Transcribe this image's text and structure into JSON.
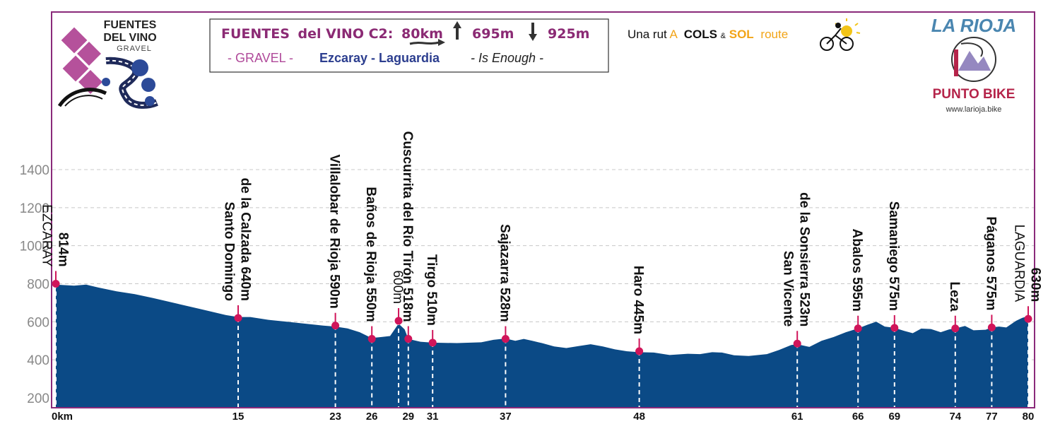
{
  "header": {
    "logo_left": {
      "line1": "FUENTES",
      "line2": "DEL VINO",
      "line3": "GRAVEL"
    },
    "title_box": {
      "route_name": "FUENTES",
      "route_name_rest": "del VINO C2:",
      "distance": "80km",
      "ascent": "695m",
      "descent": "925m",
      "gravel_label": "- GRAVEL -",
      "route_ends": "Ezcaray - Laguardia",
      "tagline": "- Is Enough -"
    },
    "cols_sol": {
      "prefix": "Una rut",
      "a_letter": "A",
      "cols": "COLS",
      "amp": "&",
      "sol": "SOL",
      "route": "route"
    },
    "brand": {
      "region": "LA RIOJA",
      "shop": "PUNTO BIKE",
      "website": "www.larioja.bike"
    }
  },
  "colors": {
    "frame": "#8a2a7a",
    "profile_fill": "#0b4a86",
    "marker": "#d0155a",
    "title_magenta": "#8b2a74",
    "title_blue": "#2c3e8f",
    "gravel_magenta": "#b04a9a",
    "logo_pink": "#b5519b",
    "brand_blue": "#4a86b0",
    "brand_red": "#b5244a",
    "cols_orange": "#f2a417",
    "axis_gray": "#888888"
  },
  "chart_data": {
    "type": "area",
    "title": "",
    "xlabel": "",
    "ylabel": "",
    "xlim": [
      0,
      80
    ],
    "ylim": [
      200,
      1500
    ],
    "grid": true,
    "yticks": [
      200,
      400,
      600,
      800,
      1000,
      1200,
      1400
    ],
    "xticks": [
      {
        "value": 0,
        "label": "0km"
      },
      {
        "value": 15,
        "label": "15"
      },
      {
        "value": 23,
        "label": "23"
      },
      {
        "value": 26,
        "label": "26"
      },
      {
        "value": 29,
        "label": "29"
      },
      {
        "value": 31,
        "label": "31"
      },
      {
        "value": 37,
        "label": "37"
      },
      {
        "value": 48,
        "label": "48"
      },
      {
        "value": 61,
        "label": "61"
      },
      {
        "value": 66,
        "label": "66"
      },
      {
        "value": 69,
        "label": "69"
      },
      {
        "value": 74,
        "label": "74"
      },
      {
        "value": 77,
        "label": "77"
      },
      {
        "value": 80,
        "label": "80"
      }
    ],
    "profile": [
      [
        0,
        795
      ],
      [
        1.5,
        790
      ],
      [
        2.5,
        795
      ],
      [
        3.5,
        780
      ],
      [
        5,
        760
      ],
      [
        6.5,
        745
      ],
      [
        8,
        725
      ],
      [
        10,
        695
      ],
      [
        12,
        665
      ],
      [
        14,
        635
      ],
      [
        15,
        625
      ],
      [
        16,
        625
      ],
      [
        17.5,
        610
      ],
      [
        19,
        600
      ],
      [
        20.5,
        590
      ],
      [
        22,
        580
      ],
      [
        23,
        575
      ],
      [
        24,
        565
      ],
      [
        25,
        545
      ],
      [
        25.8,
        520
      ],
      [
        26,
        515
      ],
      [
        26.8,
        520
      ],
      [
        27.5,
        525
      ],
      [
        28.2,
        590
      ],
      [
        28.7,
        560
      ],
      [
        29,
        510
      ],
      [
        30,
        495
      ],
      [
        31,
        490
      ],
      [
        33,
        488
      ],
      [
        35,
        492
      ],
      [
        36,
        505
      ],
      [
        37,
        512
      ],
      [
        37.8,
        500
      ],
      [
        38.5,
        510
      ],
      [
        39.2,
        500
      ],
      [
        40,
        488
      ],
      [
        41,
        470
      ],
      [
        42,
        462
      ],
      [
        43,
        472
      ],
      [
        44,
        482
      ],
      [
        45,
        470
      ],
      [
        46,
        455
      ],
      [
        47,
        445
      ],
      [
        48,
        440
      ],
      [
        49.2,
        438
      ],
      [
        50.5,
        425
      ],
      [
        52,
        432
      ],
      [
        53,
        430
      ],
      [
        54,
        440
      ],
      [
        54.8,
        438
      ],
      [
        55.8,
        424
      ],
      [
        57,
        420
      ],
      [
        58.5,
        430
      ],
      [
        59.5,
        452
      ],
      [
        60.5,
        478
      ],
      [
        61,
        482
      ],
      [
        62,
        468
      ],
      [
        63,
        500
      ],
      [
        64,
        520
      ],
      [
        65,
        545
      ],
      [
        66,
        565
      ],
      [
        66.8,
        585
      ],
      [
        67.5,
        600
      ],
      [
        68.2,
        575
      ],
      [
        69,
        568
      ],
      [
        69.8,
        552
      ],
      [
        70.5,
        540
      ],
      [
        71.2,
        564
      ],
      [
        72,
        562
      ],
      [
        72.8,
        545
      ],
      [
        73.5,
        560
      ],
      [
        74,
        565
      ],
      [
        74.8,
        578
      ],
      [
        75.5,
        555
      ],
      [
        76.5,
        558
      ],
      [
        77,
        570
      ],
      [
        77.6,
        575
      ],
      [
        78.2,
        570
      ],
      [
        79,
        605
      ],
      [
        79.5,
        620
      ],
      [
        80,
        630
      ]
    ],
    "points": [
      {
        "km": 0,
        "elev": 800,
        "name": "",
        "elev_label": ""
      },
      {
        "km": 15,
        "elev": 620,
        "name": "",
        "elev_label": ""
      },
      {
        "km": 23,
        "elev": 580,
        "name": "",
        "elev_label": ""
      },
      {
        "km": 26,
        "elev": 510,
        "name": "",
        "elev_label": ""
      },
      {
        "km": 28.2,
        "elev": 605,
        "name": "",
        "elev_label": ""
      },
      {
        "km": 29,
        "elev": 510,
        "name": "",
        "elev_label": ""
      },
      {
        "km": 31,
        "elev": 490,
        "name": "",
        "elev_label": ""
      },
      {
        "km": 37,
        "elev": 510,
        "name": "",
        "elev_label": ""
      },
      {
        "km": 48,
        "elev": 445,
        "name": "",
        "elev_label": ""
      },
      {
        "km": 61,
        "elev": 485,
        "name": "",
        "elev_label": ""
      },
      {
        "km": 66,
        "elev": 565,
        "name": "",
        "elev_label": ""
      },
      {
        "km": 69,
        "elev": 568,
        "name": "",
        "elev_label": ""
      },
      {
        "km": 74,
        "elev": 565,
        "name": "",
        "elev_label": ""
      },
      {
        "km": 77,
        "elev": 570,
        "name": "",
        "elev_label": ""
      },
      {
        "km": 80,
        "elev": 615,
        "name": "",
        "elev_label": ""
      }
    ],
    "annotations": [
      {
        "km": 0,
        "lines": [
          {
            "text": "EZCARAY",
            "weight": "normal"
          },
          {
            "text": "814m",
            "weight": "bold"
          }
        ]
      },
      {
        "km": 15,
        "lines": [
          {
            "text": "Santo Domingo",
            "weight": "bold"
          },
          {
            "text": "de la Calzada 640m",
            "weight": "bold"
          }
        ]
      },
      {
        "km": 23,
        "lines": [
          {
            "text": "Villalobar de Rioja 590m",
            "weight": "bold"
          }
        ]
      },
      {
        "km": 26,
        "lines": [
          {
            "text": "Baños de Rioja 550m",
            "weight": "bold"
          }
        ]
      },
      {
        "km": 28.2,
        "lines": [
          {
            "text": "600m",
            "weight": "normal"
          }
        ]
      },
      {
        "km": 29,
        "lines": [
          {
            "text": "Cuscurrita del Río Tirón 518m",
            "weight": "bold"
          }
        ]
      },
      {
        "km": 31,
        "lines": [
          {
            "text": "Tirgo 510m",
            "weight": "bold"
          }
        ]
      },
      {
        "km": 37,
        "lines": [
          {
            "text": "Sajazarra 528m",
            "weight": "bold"
          }
        ]
      },
      {
        "km": 48,
        "lines": [
          {
            "text": "Haro 445m",
            "weight": "bold"
          }
        ]
      },
      {
        "km": 61,
        "lines": [
          {
            "text": "San Vicente",
            "weight": "bold"
          },
          {
            "text": "de la Sonsierra 523m",
            "weight": "bold"
          }
        ]
      },
      {
        "km": 66,
        "lines": [
          {
            "text": "Abalos 595m",
            "weight": "bold"
          }
        ]
      },
      {
        "km": 69,
        "lines": [
          {
            "text": "Samaniego 575m",
            "weight": "bold"
          }
        ]
      },
      {
        "km": 74,
        "lines": [
          {
            "text": "Leza",
            "weight": "bold"
          }
        ]
      },
      {
        "km": 77,
        "lines": [
          {
            "text": "Páganos 575m",
            "weight": "bold"
          }
        ]
      },
      {
        "km": 80,
        "lines": [
          {
            "text": "LAGUARDIA",
            "weight": "normal"
          },
          {
            "text": "630m",
            "weight": "bold"
          }
        ]
      }
    ]
  }
}
